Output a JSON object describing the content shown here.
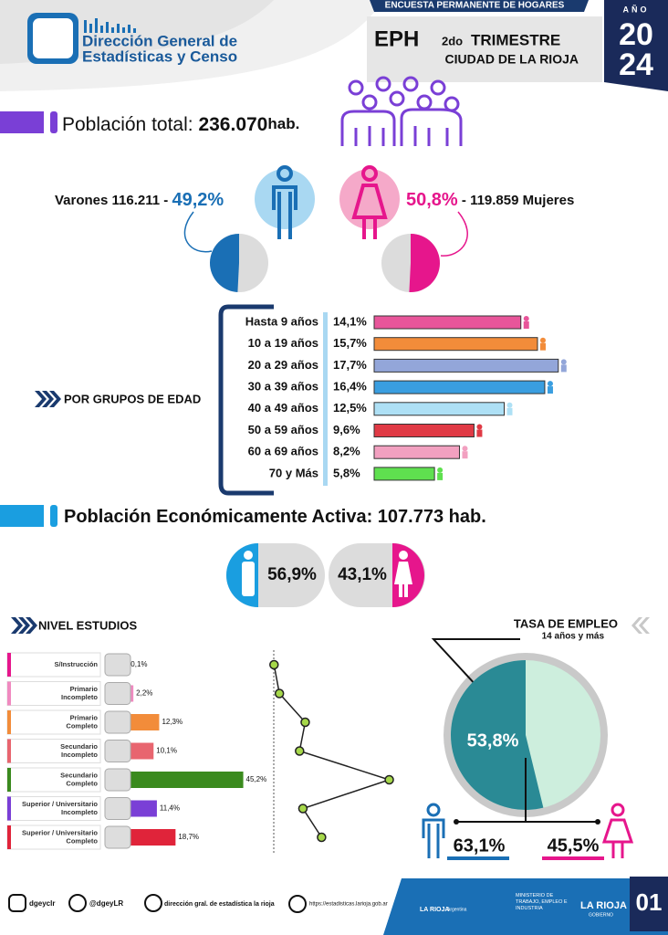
{
  "header": {
    "org_line1": "Dirección General de",
    "org_line2": "Estadísticas y Censo",
    "survey": "ENCUESTA PERMANENTE DE HOGARES",
    "eph": "EPH",
    "quarter": "2do",
    "quarter_word": "TRIMESTRE",
    "city": "CIUDAD DE LA RIOJA",
    "year_label": "AÑO",
    "year_top": "20",
    "year_bottom": "24"
  },
  "population": {
    "label": "Población total:",
    "value": "236.070",
    "unit": "hab."
  },
  "sex": {
    "men": {
      "label": "Varones",
      "count": "116.211",
      "sep": "-",
      "pct": 49.2,
      "pct_label": "49,2%",
      "color": "#1a6fb5"
    },
    "women": {
      "label": "Mujeres",
      "count": "119.859",
      "sep": "-",
      "pct": 50.8,
      "pct_label": "50,8%",
      "color": "#e6168c"
    }
  },
  "age_groups": {
    "title": "POR GRUPOS DE EDAD",
    "categories": [
      "Hasta 9 años",
      "10 a 19 años",
      "20 a 29 años",
      "30 a 39 años",
      "40 a 49 años",
      "50 a 59 años",
      "60 a 69 años",
      "70 y Más"
    ],
    "values": [
      14.1,
      15.7,
      17.7,
      16.4,
      12.5,
      9.6,
      8.2,
      5.8
    ],
    "value_labels": [
      "14,1%",
      "15,7%",
      "17,7%",
      "16,4%",
      "12,5%",
      "9,6%",
      "8,2%",
      "5,8%"
    ],
    "colors": [
      "#e8559a",
      "#f28c3a",
      "#93a6d9",
      "#3a9ee0",
      "#aee0f5",
      "#e03a45",
      "#f2a0c0",
      "#5fe04f"
    ]
  },
  "pea": {
    "label": "Población Económicamente Activa:",
    "value": "107.773 hab.",
    "men": {
      "pct": 56.9,
      "pct_label": "56,9%"
    },
    "women": {
      "pct": 43.1,
      "pct_label": "43,1%"
    }
  },
  "education": {
    "title": "NIVEL ESTUDIOS",
    "categories": [
      [
        "S/Instrucción"
      ],
      [
        "Primario",
        "Incompleto"
      ],
      [
        "Primario",
        "Completo"
      ],
      [
        "Secundario",
        "Incompleto"
      ],
      [
        "Secundario",
        "Completo"
      ],
      [
        "Superior / Universitario",
        "Incompleto"
      ],
      [
        "Superior / Universitario",
        "Completo"
      ]
    ],
    "values": [
      0.1,
      2.2,
      12.3,
      10.1,
      45.2,
      11.4,
      18.7
    ],
    "value_labels": [
      "0,1%",
      "2,2%",
      "12,3%",
      "10,1%",
      "45,2%",
      "11,4%",
      "18,7%"
    ],
    "colors": [
      "#e6168c",
      "#f08ac0",
      "#f28c3a",
      "#e8656f",
      "#3a8a1e",
      "#7a3fd6",
      "#e0243a"
    ]
  },
  "employment": {
    "title": "TASA DE EMPLEO",
    "subtitle": "14 años y más",
    "total": 53.8,
    "total_label": "53,8%",
    "men": 63.1,
    "men_label": "63,1%",
    "women": 45.5,
    "women_label": "45,5%"
  },
  "footer": {
    "instagram": "dgeyclr",
    "x": "@dgeyLR",
    "facebook": "dirección gral. de estadística la rioja",
    "web": "https://estadisticas.larioja.gob.ar",
    "brand": "LA RIOJA",
    "brand_sub": "Argentina",
    "ministry": "MINISTERIO DE TRABAJO, EMPLEO E INDUSTRIA",
    "gov": "LA RIOJA",
    "gov_sub": "GOBIERNO",
    "page": "01"
  }
}
